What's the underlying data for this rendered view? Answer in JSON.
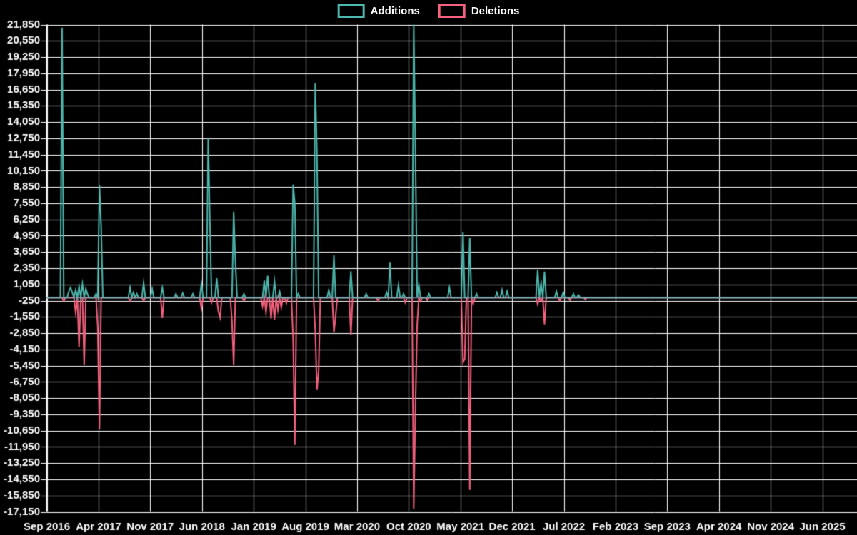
{
  "legend": {
    "additions_label": "Additions",
    "deletions_label": "Deletions"
  },
  "colors": {
    "background": "#000000",
    "grid": "#ffffff",
    "text": "#ffffff",
    "additions": "#4db8ae",
    "deletions": "#f5617e",
    "zero_line_overlay": "rgba(145,165,185,0.6)"
  },
  "chart_data": {
    "type": "line",
    "title": "",
    "legend_position": "top",
    "grid": true,
    "xlabel": "",
    "ylabel": "",
    "y_axis": {
      "min": -17150,
      "max": 21850,
      "step": 1300
    },
    "x_tick_labels": [
      "Sep 2016",
      "Apr 2017",
      "Nov 2017",
      "Jun 2018",
      "Jan 2019",
      "Aug 2019",
      "Mar 2020",
      "Oct 2020",
      "May 2021",
      "Dec 2021",
      "Jul 2022",
      "Feb 2023",
      "Sep 2023",
      "Apr 2024",
      "Nov 2024",
      "Jun 2025"
    ],
    "weeks_per_tick": 30.436,
    "num_weeks": 478,
    "series": [
      {
        "name": "Additions",
        "color_key": "additions",
        "default_value": 0,
        "points_nonzero": [
          [
            9,
            21600
          ],
          [
            13,
            500
          ],
          [
            14,
            800
          ],
          [
            15,
            400
          ],
          [
            17,
            600
          ],
          [
            19,
            900
          ],
          [
            21,
            1080
          ],
          [
            23,
            700
          ],
          [
            24,
            250
          ],
          [
            29,
            300
          ],
          [
            31,
            9000
          ],
          [
            32,
            5700
          ],
          [
            49,
            800
          ],
          [
            51,
            400
          ],
          [
            53,
            300
          ],
          [
            57,
            1170
          ],
          [
            62,
            700
          ],
          [
            68,
            790
          ],
          [
            76,
            300
          ],
          [
            80,
            350
          ],
          [
            86,
            300
          ],
          [
            91,
            1100
          ],
          [
            95,
            12800
          ],
          [
            96,
            6000
          ],
          [
            100,
            1550
          ],
          [
            110,
            6880
          ],
          [
            111,
            2880
          ],
          [
            116,
            300
          ],
          [
            128,
            1360
          ],
          [
            130,
            1740
          ],
          [
            134,
            1300
          ],
          [
            137,
            500
          ],
          [
            145,
            9050
          ],
          [
            146,
            7500
          ],
          [
            148,
            300
          ],
          [
            158,
            17150
          ],
          [
            159,
            11500
          ],
          [
            166,
            600
          ],
          [
            169,
            3370
          ],
          [
            179,
            2100
          ],
          [
            188,
            300
          ],
          [
            200,
            400
          ],
          [
            202,
            2850
          ],
          [
            207,
            980
          ],
          [
            210,
            300
          ],
          [
            216,
            21850
          ],
          [
            217,
            11500
          ],
          [
            219,
            1000
          ],
          [
            225,
            300
          ],
          [
            237,
            800
          ],
          [
            245,
            5260
          ],
          [
            249,
            4790
          ],
          [
            253,
            300
          ],
          [
            265,
            400
          ],
          [
            268,
            600
          ],
          [
            271,
            500
          ],
          [
            289,
            2220
          ],
          [
            291,
            1170
          ],
          [
            293,
            2080
          ],
          [
            300,
            500
          ],
          [
            304,
            400
          ],
          [
            310,
            300
          ],
          [
            313,
            200
          ]
        ]
      },
      {
        "name": "Deletions",
        "color_key": "deletions",
        "default_value": 0,
        "points_nonzero": [
          [
            10,
            -300
          ],
          [
            17,
            -1200
          ],
          [
            19,
            -3970
          ],
          [
            22,
            -5390
          ],
          [
            30,
            -2400
          ],
          [
            31,
            -10550
          ],
          [
            49,
            -300
          ],
          [
            57,
            -250
          ],
          [
            68,
            -1640
          ],
          [
            91,
            -900
          ],
          [
            97,
            -400
          ],
          [
            101,
            -1120
          ],
          [
            102,
            -1600
          ],
          [
            109,
            -1900
          ],
          [
            110,
            -5400
          ],
          [
            116,
            -250
          ],
          [
            127,
            -700
          ],
          [
            129,
            -1200
          ],
          [
            132,
            -1680
          ],
          [
            134,
            -1750
          ],
          [
            136,
            -1000
          ],
          [
            138,
            -800
          ],
          [
            141,
            -450
          ],
          [
            145,
            -3400
          ],
          [
            146,
            -11800
          ],
          [
            158,
            -2600
          ],
          [
            159,
            -7400
          ],
          [
            160,
            -5900
          ],
          [
            169,
            -2800
          ],
          [
            170,
            -1500
          ],
          [
            179,
            -3000
          ],
          [
            195,
            -250
          ],
          [
            211,
            -400
          ],
          [
            216,
            -16900
          ],
          [
            217,
            -8800
          ],
          [
            218,
            -2200
          ],
          [
            220,
            -300
          ],
          [
            224,
            -200
          ],
          [
            245,
            -5200
          ],
          [
            246,
            -4900
          ],
          [
            249,
            -15400
          ],
          [
            251,
            -500
          ],
          [
            289,
            -540
          ],
          [
            291,
            -300
          ],
          [
            293,
            -2150
          ],
          [
            302,
            -250
          ],
          [
            308,
            -200
          ],
          [
            317,
            -150
          ]
        ]
      }
    ]
  }
}
